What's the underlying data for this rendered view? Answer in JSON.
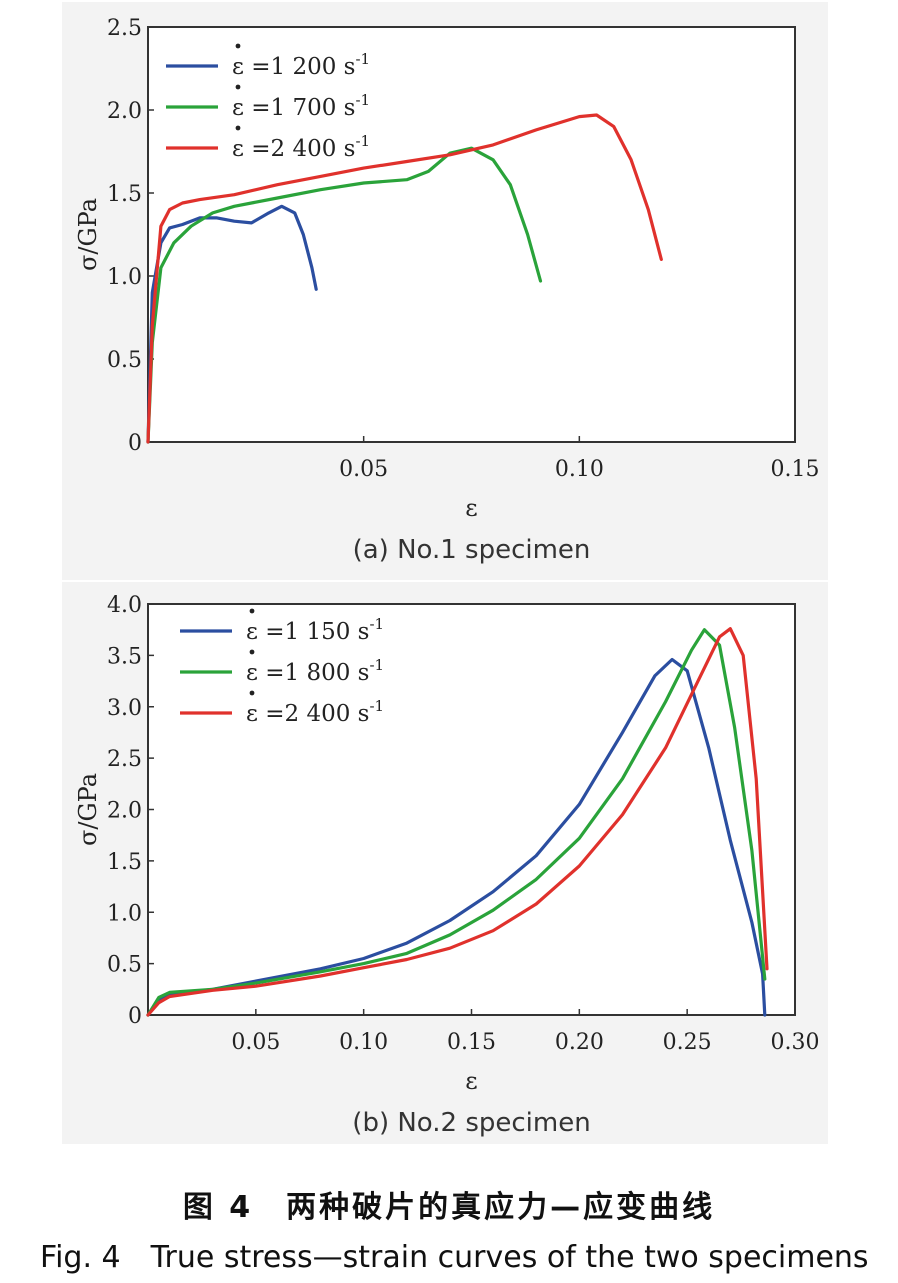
{
  "chart_data": [
    {
      "type": "line",
      "caption": "(a) No.1 specimen",
      "xlabel": "ε",
      "ylabel": "σ/GPa",
      "xlim": [
        0,
        0.15
      ],
      "ylim": [
        0,
        2.5
      ],
      "xticks": [
        "0.05",
        "0.10",
        "0.15"
      ],
      "yticks": [
        "0",
        "0.5",
        "1.0",
        "1.5",
        "2.0",
        "2.5"
      ],
      "legend_position": "top-left",
      "series": [
        {
          "name": "ε̇ =1 200 s⁻¹",
          "legend": {
            "lhs": "ε",
            "rhs": "=1 200 s",
            "sup": "-1"
          },
          "color": "#2b4ea0",
          "x": [
            0,
            0.001,
            0.003,
            0.005,
            0.008,
            0.012,
            0.016,
            0.02,
            0.024,
            0.028,
            0.031,
            0.034,
            0.036,
            0.038,
            0.039
          ],
          "y": [
            0,
            0.9,
            1.2,
            1.29,
            1.31,
            1.35,
            1.35,
            1.33,
            1.32,
            1.38,
            1.42,
            1.38,
            1.25,
            1.05,
            0.92
          ]
        },
        {
          "name": "ε̇ =1 700 s⁻¹",
          "legend": {
            "lhs": "ε",
            "rhs": "=1 700 s",
            "sup": "-1"
          },
          "color": "#2aa33a",
          "x": [
            0,
            0.001,
            0.003,
            0.006,
            0.01,
            0.015,
            0.02,
            0.03,
            0.04,
            0.05,
            0.06,
            0.065,
            0.07,
            0.075,
            0.08,
            0.084,
            0.088,
            0.091
          ],
          "y": [
            0,
            0.6,
            1.05,
            1.2,
            1.3,
            1.38,
            1.42,
            1.47,
            1.52,
            1.56,
            1.58,
            1.63,
            1.74,
            1.77,
            1.7,
            1.55,
            1.25,
            0.97
          ]
        },
        {
          "name": "ε̇ =2 400 s⁻¹",
          "legend": {
            "lhs": "ε",
            "rhs": "=2 400 s",
            "sup": "-1"
          },
          "color": "#e0312c",
          "x": [
            0,
            0.001,
            0.003,
            0.005,
            0.008,
            0.012,
            0.02,
            0.03,
            0.04,
            0.05,
            0.06,
            0.07,
            0.08,
            0.09,
            0.1,
            0.104,
            0.108,
            0.112,
            0.116,
            0.119
          ],
          "y": [
            0,
            0.7,
            1.3,
            1.4,
            1.44,
            1.46,
            1.49,
            1.55,
            1.6,
            1.65,
            1.69,
            1.73,
            1.79,
            1.88,
            1.96,
            1.97,
            1.9,
            1.7,
            1.4,
            1.1
          ]
        }
      ]
    },
    {
      "type": "line",
      "caption": "(b) No.2 specimen",
      "xlabel": "ε",
      "ylabel": "σ/GPa",
      "xlim": [
        0,
        0.3
      ],
      "ylim": [
        0,
        4.0
      ],
      "xticks": [
        "0.05",
        "0.10",
        "0.15",
        "0.20",
        "0.25",
        "0.30"
      ],
      "yticks": [
        "0",
        "0.5",
        "1.0",
        "1.5",
        "2.0",
        "2.5",
        "3.0",
        "3.5",
        "4.0"
      ],
      "legend_position": "top-left",
      "series": [
        {
          "name": "ε̇ =1 150 s⁻¹",
          "legend": {
            "lhs": "ε",
            "rhs": "=1 150 s",
            "sup": "-1"
          },
          "color": "#2b4ea0",
          "x": [
            0,
            0.005,
            0.01,
            0.03,
            0.05,
            0.08,
            0.1,
            0.12,
            0.14,
            0.16,
            0.18,
            0.2,
            0.22,
            0.235,
            0.243,
            0.25,
            0.26,
            0.27,
            0.28,
            0.285,
            0.286
          ],
          "y": [
            0,
            0.15,
            0.2,
            0.25,
            0.33,
            0.45,
            0.55,
            0.7,
            0.92,
            1.2,
            1.55,
            2.05,
            2.75,
            3.3,
            3.46,
            3.35,
            2.6,
            1.7,
            0.9,
            0.4,
            0.0
          ]
        },
        {
          "name": "ε̇ =1 800 s⁻¹",
          "legend": {
            "lhs": "ε",
            "rhs": "=1 800 s",
            "sup": "-1"
          },
          "color": "#2aa33a",
          "x": [
            0,
            0.005,
            0.01,
            0.03,
            0.05,
            0.08,
            0.1,
            0.12,
            0.14,
            0.16,
            0.18,
            0.2,
            0.22,
            0.24,
            0.252,
            0.258,
            0.265,
            0.272,
            0.28,
            0.286
          ],
          "y": [
            0,
            0.17,
            0.22,
            0.25,
            0.31,
            0.42,
            0.5,
            0.6,
            0.78,
            1.02,
            1.32,
            1.72,
            2.3,
            3.05,
            3.55,
            3.75,
            3.6,
            2.8,
            1.6,
            0.35
          ]
        },
        {
          "name": "ε̇ =2 400 s⁻¹",
          "legend": {
            "lhs": "ε",
            "rhs": "=2 400 s",
            "sup": "-1"
          },
          "color": "#e0312c",
          "x": [
            0,
            0.005,
            0.01,
            0.03,
            0.05,
            0.08,
            0.1,
            0.12,
            0.14,
            0.16,
            0.18,
            0.2,
            0.22,
            0.24,
            0.255,
            0.265,
            0.27,
            0.276,
            0.282,
            0.287
          ],
          "y": [
            0,
            0.12,
            0.18,
            0.24,
            0.28,
            0.38,
            0.46,
            0.54,
            0.65,
            0.82,
            1.08,
            1.45,
            1.95,
            2.6,
            3.25,
            3.68,
            3.76,
            3.5,
            2.3,
            0.45
          ]
        }
      ]
    }
  ],
  "figure": {
    "caption_cn": "图 4　两种破片的真应力—应变曲线",
    "caption_en": "Fig. 4　True stress—strain curves of the two specimens"
  }
}
